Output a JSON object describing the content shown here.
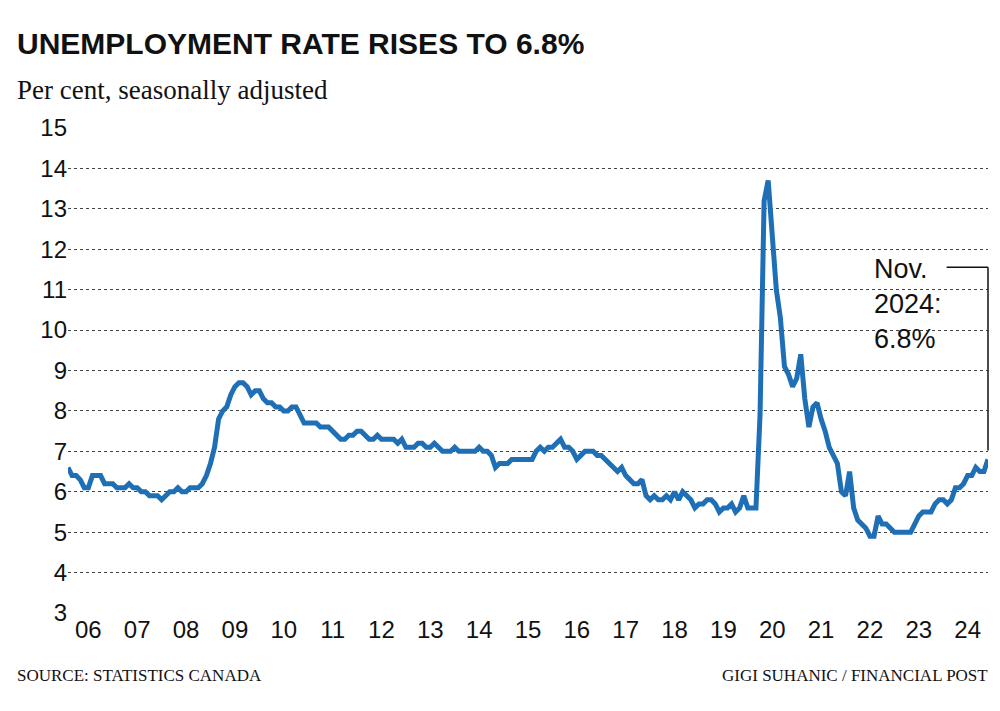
{
  "chart_data": {
    "type": "line",
    "title": "UNEMPLOYMENT RATE RISES TO 6.8%",
    "subtitle": "Per cent, seasonally adjusted",
    "source": "SOURCE: STATISTICS CANADA",
    "credit": "GIGI SUHANIC / FINANCIAL POST",
    "annotations": [
      {
        "lines": [
          "Nov.",
          "2024:",
          "6.8%"
        ]
      }
    ],
    "color": "#1f6fb6",
    "grid": true,
    "ylim": [
      3,
      15
    ],
    "yticks": [
      3,
      4,
      5,
      6,
      7,
      8,
      9,
      10,
      11,
      12,
      13,
      14,
      15
    ],
    "categories": [
      null,
      null,
      null,
      null,
      null,
      "06",
      null,
      null,
      null,
      null,
      null,
      null,
      null,
      null,
      null,
      null,
      null,
      "07",
      null,
      null,
      null,
      null,
      null,
      null,
      null,
      null,
      null,
      null,
      null,
      "08",
      null,
      null,
      null,
      null,
      null,
      null,
      null,
      null,
      null,
      null,
      null,
      "09",
      null,
      null,
      null,
      null,
      null,
      null,
      null,
      null,
      null,
      null,
      null,
      "10",
      null,
      null,
      null,
      null,
      null,
      null,
      null,
      null,
      null,
      null,
      null,
      "11",
      null,
      null,
      null,
      null,
      null,
      null,
      null,
      null,
      null,
      null,
      null,
      "12",
      null,
      null,
      null,
      null,
      null,
      null,
      null,
      null,
      null,
      null,
      null,
      "13",
      null,
      null,
      null,
      null,
      null,
      null,
      null,
      null,
      null,
      null,
      null,
      "14",
      null,
      null,
      null,
      null,
      null,
      null,
      null,
      null,
      null,
      null,
      null,
      "15",
      null,
      null,
      null,
      null,
      null,
      null,
      null,
      null,
      null,
      null,
      null,
      "16",
      null,
      null,
      null,
      null,
      null,
      null,
      null,
      null,
      null,
      null,
      null,
      "17",
      null,
      null,
      null,
      null,
      null,
      null,
      null,
      null,
      null,
      null,
      null,
      "18",
      null,
      null,
      null,
      null,
      null,
      null,
      null,
      null,
      null,
      null,
      null,
      "19",
      null,
      null,
      null,
      null,
      null,
      null,
      null,
      null,
      null,
      null,
      null,
      "20",
      null,
      null,
      null,
      null,
      null,
      null,
      null,
      null,
      null,
      null,
      null,
      "21",
      null,
      null,
      null,
      null,
      null,
      null,
      null,
      null,
      null,
      null,
      null,
      "22",
      null,
      null,
      null,
      null,
      null,
      null,
      null,
      null,
      null,
      null,
      null,
      "23",
      null,
      null,
      null,
      null,
      null,
      null,
      null,
      null,
      null,
      null,
      null,
      "24",
      null,
      null,
      null,
      null,
      null
    ],
    "values": [
      6.6,
      6.4,
      6.4,
      6.3,
      6.1,
      6.1,
      6.4,
      6.4,
      6.4,
      6.2,
      6.2,
      6.2,
      6.1,
      6.1,
      6.1,
      6.2,
      6.1,
      6.1,
      6.0,
      6.0,
      5.9,
      5.9,
      5.9,
      5.8,
      5.9,
      6.0,
      6.0,
      6.1,
      6.0,
      6.0,
      6.1,
      6.1,
      6.1,
      6.2,
      6.4,
      6.7,
      7.1,
      7.8,
      8.0,
      8.1,
      8.4,
      8.6,
      8.7,
      8.7,
      8.6,
      8.4,
      8.5,
      8.5,
      8.3,
      8.2,
      8.2,
      8.1,
      8.1,
      8.0,
      8.0,
      8.1,
      8.1,
      7.9,
      7.7,
      7.7,
      7.7,
      7.7,
      7.6,
      7.6,
      7.6,
      7.5,
      7.4,
      7.3,
      7.3,
      7.4,
      7.4,
      7.5,
      7.5,
      7.4,
      7.3,
      7.3,
      7.4,
      7.3,
      7.3,
      7.3,
      7.3,
      7.2,
      7.3,
      7.1,
      7.1,
      7.1,
      7.2,
      7.2,
      7.1,
      7.1,
      7.2,
      7.1,
      7.0,
      7.0,
      7.0,
      7.1,
      7.0,
      7.0,
      7.0,
      7.0,
      7.0,
      7.1,
      7.0,
      7.0,
      6.9,
      6.6,
      6.7,
      6.7,
      6.7,
      6.8,
      6.8,
      6.8,
      6.8,
      6.8,
      6.8,
      7.0,
      7.1,
      7.0,
      7.1,
      7.1,
      7.2,
      7.3,
      7.1,
      7.1,
      7.0,
      6.8,
      6.9,
      7.0,
      7.0,
      7.0,
      6.9,
      6.9,
      6.8,
      6.7,
      6.6,
      6.5,
      6.6,
      6.4,
      6.3,
      6.2,
      6.2,
      6.3,
      5.9,
      5.8,
      5.9,
      5.8,
      5.8,
      5.9,
      5.8,
      6.0,
      5.8,
      6.0,
      5.9,
      5.8,
      5.6,
      5.7,
      5.7,
      5.8,
      5.8,
      5.7,
      5.5,
      5.6,
      5.6,
      5.7,
      5.5,
      5.6,
      5.9,
      5.6,
      5.6,
      5.6,
      7.9,
      13.2,
      13.7,
      12.4,
      11.0,
      10.3,
      9.1,
      8.9,
      8.6,
      8.8,
      9.4,
      8.3,
      7.6,
      8.1,
      8.2,
      7.8,
      7.5,
      7.1,
      6.9,
      6.7,
      6.0,
      5.9,
      6.5,
      5.6,
      5.3,
      5.2,
      5.1,
      4.9,
      4.9,
      5.4,
      5.2,
      5.2,
      5.1,
      5.0,
      5.0,
      5.0,
      5.0,
      5.0,
      5.2,
      5.4,
      5.5,
      5.5,
      5.5,
      5.7,
      5.8,
      5.8,
      5.7,
      5.8,
      6.1,
      6.1,
      6.2,
      6.4,
      6.4,
      6.6,
      6.5,
      6.5,
      6.8
    ]
  }
}
